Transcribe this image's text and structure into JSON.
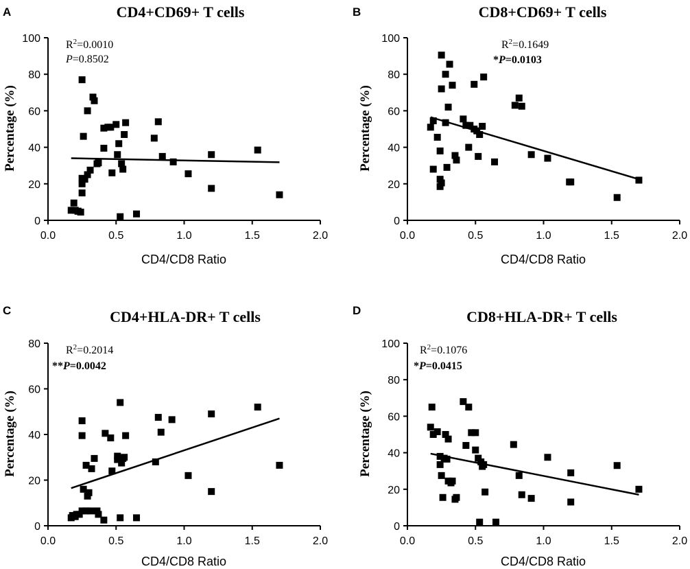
{
  "chart_data": [
    {
      "panel": "A",
      "type": "scatter",
      "title": "CD4+CD69+ T cells",
      "xlabel": "CD4/CD8 Ratio",
      "ylabel": "Percentage (%)",
      "xlim": [
        0,
        2
      ],
      "ylim": [
        0,
        100
      ],
      "xticks": [
        "0.0",
        "0.5",
        "1.0",
        "1.5",
        "2.0"
      ],
      "xtick_values": [
        0,
        0.5,
        1,
        1.5,
        2
      ],
      "yticks": [
        "0",
        "20",
        "40",
        "60",
        "80",
        "100"
      ],
      "ytick_values": [
        0,
        20,
        40,
        60,
        80,
        100
      ],
      "stats": {
        "r2_prefix": "R",
        "r2_sup": "2",
        "r2_value": "=0.0010",
        "stars": "",
        "p_letter": "P",
        "p_value": "=0.8502",
        "p_bold": false
      },
      "fit": {
        "x": [
          0.17,
          1.7
        ],
        "y": [
          34.0,
          31.8
        ]
      },
      "points": [
        [
          0.17,
          5.5
        ],
        [
          0.19,
          9.5
        ],
        [
          0.2,
          5.5
        ],
        [
          0.22,
          5
        ],
        [
          0.22,
          5
        ],
        [
          0.24,
          4.5
        ],
        [
          0.25,
          77
        ],
        [
          0.25,
          23
        ],
        [
          0.25,
          20
        ],
        [
          0.25,
          15
        ],
        [
          0.26,
          46
        ],
        [
          0.27,
          22.5
        ],
        [
          0.29,
          60
        ],
        [
          0.29,
          25
        ],
        [
          0.31,
          27.5
        ],
        [
          0.33,
          67.5
        ],
        [
          0.34,
          65.5
        ],
        [
          0.36,
          31
        ],
        [
          0.37,
          31.5
        ],
        [
          0.41,
          50.5
        ],
        [
          0.41,
          39.5
        ],
        [
          0.44,
          51
        ],
        [
          0.46,
          51
        ],
        [
          0.47,
          26
        ],
        [
          0.5,
          52.5
        ],
        [
          0.51,
          36
        ],
        [
          0.52,
          42
        ],
        [
          0.53,
          2
        ],
        [
          0.54,
          31
        ],
        [
          0.55,
          28
        ],
        [
          0.56,
          47
        ],
        [
          0.57,
          53.5
        ],
        [
          0.65,
          3.5
        ],
        [
          0.78,
          45
        ],
        [
          0.81,
          54
        ],
        [
          0.84,
          35
        ],
        [
          0.92,
          32
        ],
        [
          1.03,
          25.5
        ],
        [
          1.2,
          36
        ],
        [
          1.2,
          17.5
        ],
        [
          1.54,
          38.5
        ],
        [
          1.7,
          14
        ]
      ]
    },
    {
      "panel": "B",
      "type": "scatter",
      "title": "CD8+CD69+ T cells",
      "xlabel": "CD4/CD8 Ratio",
      "ylabel": "Percentage (%)",
      "xlim": [
        0,
        2
      ],
      "ylim": [
        0,
        100
      ],
      "xticks": [
        "0.0",
        "0.5",
        "1.0",
        "1.5",
        "2.0"
      ],
      "xtick_values": [
        0,
        0.5,
        1,
        1.5,
        2
      ],
      "yticks": [
        "0",
        "20",
        "40",
        "60",
        "80",
        "100"
      ],
      "ytick_values": [
        0,
        20,
        40,
        60,
        80,
        100
      ],
      "stats": {
        "r2_prefix": "R",
        "r2_sup": "2",
        "r2_value": "=0.1649",
        "stars": "*",
        "p_letter": "P",
        "p_value": "=0.0103",
        "p_bold": true
      },
      "fit": {
        "x": [
          0.17,
          1.7
        ],
        "y": [
          56.5,
          22.5
        ]
      },
      "points": [
        [
          0.17,
          51
        ],
        [
          0.19,
          28
        ],
        [
          0.19,
          54.5
        ],
        [
          0.22,
          45.5
        ],
        [
          0.24,
          38
        ],
        [
          0.24,
          22.5
        ],
        [
          0.24,
          18.5
        ],
        [
          0.25,
          20.5
        ],
        [
          0.25,
          90.5
        ],
        [
          0.25,
          72
        ],
        [
          0.28,
          80
        ],
        [
          0.28,
          53.5
        ],
        [
          0.29,
          29
        ],
        [
          0.3,
          62
        ],
        [
          0.31,
          85.5
        ],
        [
          0.33,
          74
        ],
        [
          0.35,
          35.5
        ],
        [
          0.36,
          33
        ],
        [
          0.41,
          55.5
        ],
        [
          0.43,
          52
        ],
        [
          0.45,
          40
        ],
        [
          0.46,
          52
        ],
        [
          0.49,
          74.5
        ],
        [
          0.49,
          50
        ],
        [
          0.51,
          49
        ],
        [
          0.52,
          35
        ],
        [
          0.53,
          47
        ],
        [
          0.55,
          51.5
        ],
        [
          0.56,
          78.5
        ],
        [
          0.64,
          32
        ],
        [
          0.79,
          63
        ],
        [
          0.82,
          67
        ],
        [
          0.84,
          62.5
        ],
        [
          0.91,
          36
        ],
        [
          1.03,
          34
        ],
        [
          1.19,
          21
        ],
        [
          1.2,
          21
        ],
        [
          1.54,
          12.5
        ],
        [
          1.7,
          22
        ]
      ]
    },
    {
      "panel": "C",
      "type": "scatter",
      "title": "CD4+HLA-DR+ T cells",
      "xlabel": "CD4/CD8 Ratio",
      "ylabel": "Percentage (%)",
      "xlim": [
        0,
        2
      ],
      "ylim": [
        0,
        80
      ],
      "xticks": [
        "0.0",
        "0.5",
        "1.0",
        "1.5",
        "2.0"
      ],
      "xtick_values": [
        0,
        0.5,
        1,
        1.5,
        2
      ],
      "yticks": [
        "0",
        "20",
        "40",
        "60",
        "80"
      ],
      "ytick_values": [
        0,
        20,
        40,
        60,
        80
      ],
      "stats": {
        "r2_prefix": "R",
        "r2_sup": "2",
        "r2_value": "=0.2014",
        "stars": "**",
        "p_letter": "P",
        "p_value": "=0.0042",
        "p_bold": true
      },
      "fit": {
        "x": [
          0.17,
          1.7
        ],
        "y": [
          16.5,
          47.0
        ]
      },
      "points": [
        [
          0.17,
          3.5
        ],
        [
          0.18,
          4.5
        ],
        [
          0.2,
          4
        ],
        [
          0.21,
          5
        ],
        [
          0.23,
          5
        ],
        [
          0.25,
          6.5
        ],
        [
          0.25,
          46
        ],
        [
          0.25,
          39.5
        ],
        [
          0.26,
          16
        ],
        [
          0.28,
          6.5
        ],
        [
          0.28,
          26.5
        ],
        [
          0.29,
          13
        ],
        [
          0.3,
          14.5
        ],
        [
          0.31,
          6.5
        ],
        [
          0.32,
          25
        ],
        [
          0.34,
          29.5
        ],
        [
          0.36,
          6.5
        ],
        [
          0.37,
          5
        ],
        [
          0.41,
          2.5
        ],
        [
          0.42,
          40.5
        ],
        [
          0.46,
          38.5
        ],
        [
          0.47,
          24
        ],
        [
          0.51,
          30.5
        ],
        [
          0.51,
          29
        ],
        [
          0.53,
          54
        ],
        [
          0.53,
          3.5
        ],
        [
          0.54,
          27.5
        ],
        [
          0.55,
          29.5
        ],
        [
          0.56,
          30
        ],
        [
          0.57,
          39.5
        ],
        [
          0.65,
          3.5
        ],
        [
          0.79,
          28
        ],
        [
          0.81,
          47.5
        ],
        [
          0.83,
          41
        ],
        [
          0.91,
          46.5
        ],
        [
          1.03,
          22
        ],
        [
          1.2,
          15
        ],
        [
          1.2,
          49
        ],
        [
          1.54,
          52
        ],
        [
          1.7,
          26.5
        ]
      ]
    },
    {
      "panel": "D",
      "type": "scatter",
      "title": "CD8+HLA-DR+ T cells",
      "xlabel": "CD4/CD8 Ratio",
      "ylabel": "Percentage (%)",
      "xlim": [
        0,
        2
      ],
      "ylim": [
        0,
        100
      ],
      "xticks": [
        "0.0",
        "0.5",
        "1.0",
        "1.5",
        "2.0"
      ],
      "xtick_values": [
        0,
        0.5,
        1,
        1.5,
        2
      ],
      "yticks": [
        "0",
        "20",
        "40",
        "60",
        "80",
        "100"
      ],
      "ytick_values": [
        0,
        20,
        40,
        60,
        80,
        100
      ],
      "stats": {
        "r2_prefix": "R",
        "r2_sup": "2",
        "r2_value": "=0.1076",
        "stars": "*",
        "p_letter": "P",
        "p_value": "=0.0415",
        "p_bold": true
      },
      "fit": {
        "x": [
          0.17,
          1.7
        ],
        "y": [
          39.5,
          17.0
        ]
      },
      "points": [
        [
          0.17,
          54
        ],
        [
          0.18,
          65
        ],
        [
          0.19,
          50
        ],
        [
          0.22,
          51.5
        ],
        [
          0.24,
          38
        ],
        [
          0.24,
          33.5
        ],
        [
          0.25,
          27.5
        ],
        [
          0.26,
          15.5
        ],
        [
          0.27,
          37
        ],
        [
          0.28,
          50
        ],
        [
          0.29,
          36.5
        ],
        [
          0.3,
          24.5
        ],
        [
          0.3,
          47.5
        ],
        [
          0.32,
          23.5
        ],
        [
          0.33,
          24.5
        ],
        [
          0.35,
          14.5
        ],
        [
          0.36,
          15.5
        ],
        [
          0.41,
          68
        ],
        [
          0.43,
          44
        ],
        [
          0.45,
          65
        ],
        [
          0.47,
          51
        ],
        [
          0.5,
          51
        ],
        [
          0.5,
          41.5
        ],
        [
          0.52,
          37
        ],
        [
          0.53,
          2
        ],
        [
          0.54,
          35
        ],
        [
          0.55,
          32.5
        ],
        [
          0.56,
          33.5
        ],
        [
          0.57,
          18.5
        ],
        [
          0.65,
          2
        ],
        [
          0.78,
          44.5
        ],
        [
          0.82,
          27.5
        ],
        [
          0.84,
          17
        ],
        [
          0.91,
          15
        ],
        [
          1.03,
          37.5
        ],
        [
          1.2,
          29
        ],
        [
          1.2,
          13
        ],
        [
          1.54,
          33
        ],
        [
          1.7,
          20
        ]
      ]
    }
  ]
}
